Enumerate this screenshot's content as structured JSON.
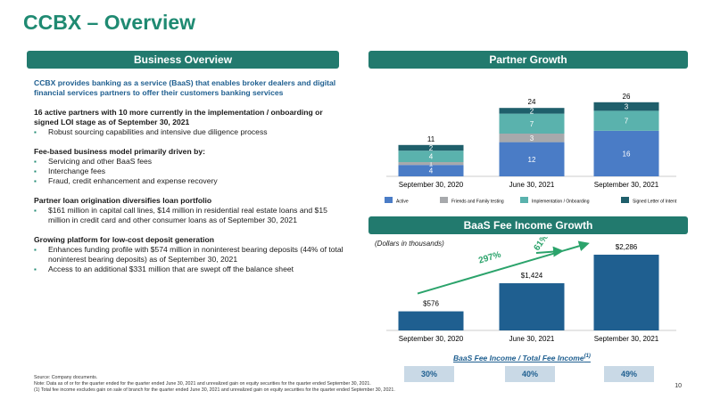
{
  "page": {
    "title": "CCBX – Overview",
    "page_number": "10"
  },
  "left": {
    "banner": "Business Overview",
    "intro": "CCBX provides banking as a service (BaaS) that enables broker dealers and digital financial services partners to offer their customers banking services",
    "sections": [
      {
        "heading": "16 active partners with 10 more currently in the implementation / onboarding or signed LOI stage as of September 30, 2021",
        "bullets": [
          "Robust sourcing capabilities and intensive due diligence process"
        ]
      },
      {
        "heading": "Fee-based business model primarily driven by:",
        "bullets": [
          "Servicing and other BaaS fees",
          "Interchange fees",
          "Fraud, credit enhancement and expense recovery"
        ]
      },
      {
        "heading": "Partner loan origination diversifies loan portfolio",
        "bullets": [
          "$161 million in capital call lines, $14 million in residential real estate loans and $15 million in credit card and other consumer loans as of September 30, 2021"
        ]
      },
      {
        "heading": "Growing platform for low-cost deposit generation",
        "bullets": [
          "Enhances funding profile with $574 million in noninterest bearing deposits (44% of total noninterest bearing deposits) as of September 30, 2021",
          "Access to an additional $331 million that are swept off the balance sheet"
        ]
      }
    ]
  },
  "partner_growth": {
    "banner": "Partner Growth"
  },
  "fee_growth": {
    "banner": "BaaS Fee Income Growth",
    "note": "(Dollars in thousands)",
    "growth_labels": [
      "297%",
      "61%"
    ],
    "ratio_title": "BaaS Fee Income / Total Fee Income",
    "ratio_sup": "(1)",
    "ratios": [
      "30%",
      "40%",
      "49%"
    ]
  },
  "footnotes": [
    "Source: Company documents.",
    "Note: Data as of or for the quarter ended for the quarter ended June 30, 2021 and unrealized gain on equity securities for the quarter ended September 30, 2021.",
    "(1)      Total fee income excludes gain on sale of branch for the quarter ended June 30, 2021 and unrealized gain on equity securities for the quarter ended September 30, 2021."
  ],
  "chart_data": [
    {
      "type": "bar",
      "stacked": true,
      "categories": [
        "September 30, 2020",
        "June 30, 2021",
        "September 30, 2021"
      ],
      "series": [
        {
          "name": "Active",
          "values": [
            4,
            12,
            16
          ],
          "color": "#4a7cc6"
        },
        {
          "name": "Friends and Family testing",
          "values": [
            1,
            3,
            0
          ],
          "color": "#a7a9ac"
        },
        {
          "name": "Implementation / Onboarding",
          "values": [
            4,
            7,
            7
          ],
          "color": "#5ab2ad"
        },
        {
          "name": "Signed Letter of Intent",
          "values": [
            2,
            2,
            3
          ],
          "color": "#1f5f6b"
        }
      ],
      "totals": [
        11,
        24,
        26
      ],
      "legend": "bottom",
      "grid": false
    },
    {
      "type": "bar",
      "categories": [
        "September 30, 2020",
        "June 30, 2021",
        "September 30, 2021"
      ],
      "values": [
        576,
        1424,
        2286
      ],
      "value_labels": [
        "$576",
        "$1,424",
        "$2,286"
      ],
      "color": "#1f5f90",
      "grid": false
    }
  ]
}
